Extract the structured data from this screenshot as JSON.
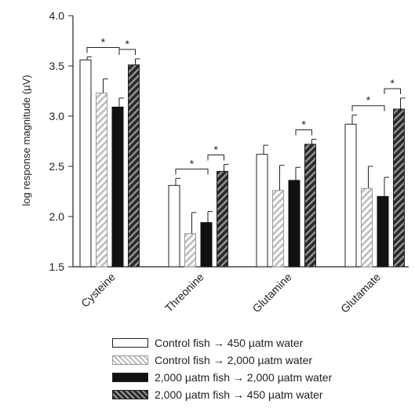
{
  "chart_data": {
    "type": "bar",
    "title": "",
    "xlabel": "",
    "ylabel": "log response magnitude (µV)",
    "ylim": [
      1.5,
      4.0
    ],
    "yticks": [
      "1.5",
      "2.0",
      "2.5",
      "3.0",
      "3.5",
      "4.0"
    ],
    "categories": [
      "Cysteine",
      "Threonine",
      "Glutamine",
      "Glutamate"
    ],
    "series": [
      {
        "name": "Control fish → 450 µatm water",
        "pattern": "white",
        "values": [
          3.56,
          2.31,
          2.62,
          2.92
        ],
        "errors": [
          0.03,
          0.07,
          0.09,
          0.09
        ]
      },
      {
        "name": "Control fish → 2,000 µatm water",
        "pattern": "light-hatch",
        "values": [
          3.23,
          1.83,
          2.26,
          2.28
        ],
        "errors": [
          0.14,
          0.21,
          0.25,
          0.22
        ]
      },
      {
        "name": "2,000 µatm fish → 2,000 µatm water",
        "pattern": "black",
        "values": [
          3.09,
          1.94,
          2.36,
          2.2
        ],
        "errors": [
          0.09,
          0.11,
          0.13,
          0.19
        ]
      },
      {
        "name": "2,000 µatm fish → 450 µatm water",
        "pattern": "dark-hatch",
        "values": [
          3.51,
          2.45,
          2.72,
          3.07
        ],
        "errors": [
          0.06,
          0.07,
          0.05,
          0.11
        ]
      }
    ],
    "significance": [
      {
        "category": 0,
        "from_series": 0,
        "to_series": 2,
        "label": "*"
      },
      {
        "category": 0,
        "from_series": 2,
        "to_series": 3,
        "label": "*"
      },
      {
        "category": 1,
        "from_series": 0,
        "to_series": 2,
        "label": "*"
      },
      {
        "category": 1,
        "from_series": 2,
        "to_series": 3,
        "label": "*"
      },
      {
        "category": 2,
        "from_series": 2,
        "to_series": 3,
        "label": "*"
      },
      {
        "category": 3,
        "from_series": 0,
        "to_series": 2,
        "label": "*"
      },
      {
        "category": 3,
        "from_series": 2,
        "to_series": 3,
        "label": "*"
      }
    ],
    "colors": {
      "axis": "#222222",
      "black_bar": "#111111",
      "dark_hatch_bg": "#2a2a2a",
      "dark_hatch_stripe": "#9a9a9a",
      "light_hatch_stripe": "#bdbdbd"
    },
    "grid": false,
    "legend_position": "bottom"
  }
}
